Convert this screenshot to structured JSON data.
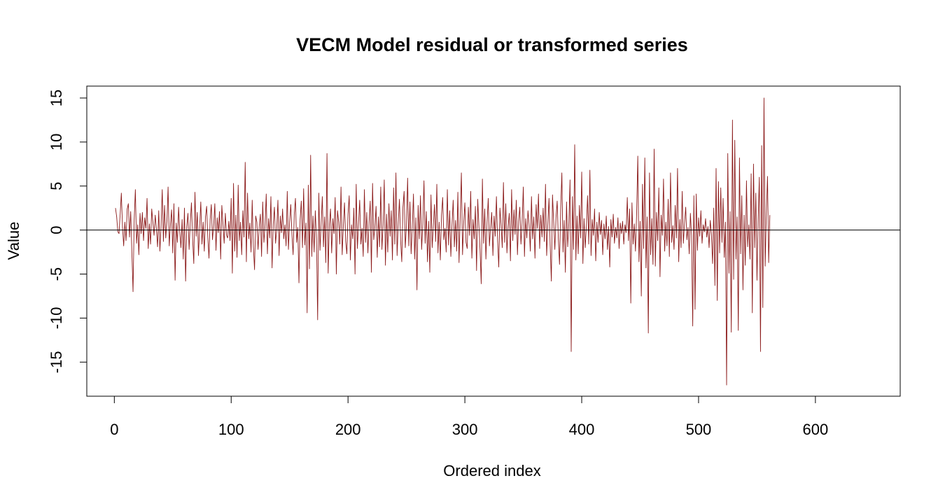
{
  "chart_data": {
    "type": "line",
    "title": "VECM Model residual or transformed series",
    "xlabel": "Ordered index",
    "ylabel": "Value",
    "xlim": [
      1,
      648
    ],
    "ylim": [
      -17.6,
      15.0
    ],
    "x_ticks": [
      0,
      100,
      200,
      300,
      400,
      500,
      600
    ],
    "y_ticks": [
      -15,
      -10,
      -5,
      0,
      5,
      10,
      15
    ],
    "x_tick_labels": [
      "0",
      "100",
      "200",
      "300",
      "400",
      "500",
      "600"
    ],
    "y_tick_labels": [
      "-15",
      "-10",
      "-5",
      "0",
      "5",
      "10",
      "15"
    ],
    "reference_line_y": 0,
    "grid": false,
    "line_color": "#8b1a1a",
    "series": [
      {
        "x_start": 1,
        "x_step": 1,
        "values": [
          2.5,
          1.5,
          -0.2,
          -0.4,
          1.8,
          4.2,
          0.3,
          -1.8,
          0.9,
          -1.2,
          2.4,
          3.0,
          -0.8,
          2.1,
          -2.5,
          -7.0,
          1.2,
          4.6,
          -1.5,
          0.6,
          -2.8,
          1.9,
          -0.4,
          2.0,
          -1.2,
          1.4,
          0.2,
          3.6,
          -2.1,
          0.7,
          -1.6,
          2.4,
          0.9,
          -0.6,
          1.7,
          0.1,
          -1.9,
          2.2,
          -2.4,
          0.5,
          4.6,
          -1.3,
          2.8,
          -0.9,
          1.0,
          4.9,
          -1.8,
          0.6,
          2.3,
          -2.6,
          3.0,
          -5.7,
          0.8,
          -1.4,
          2.6,
          -0.2,
          -2.0,
          1.2,
          -3.3,
          2.5,
          -5.8,
          0.4,
          1.9,
          -2.2,
          0.8,
          3.1,
          -1.0,
          -3.8,
          4.3,
          -0.7,
          2.0,
          -2.9,
          0.3,
          3.2,
          -1.6,
          0.9,
          -2.4,
          1.5,
          2.7,
          -0.8,
          -3.2,
          1.2,
          2.9,
          -1.1,
          0.5,
          3.0,
          -2.3,
          1.4,
          -0.3,
          2.1,
          -3.3,
          2.8,
          0.7,
          -1.5,
          1.9,
          -0.6,
          -0.9,
          1.0,
          -1.2,
          3.6,
          -4.9,
          5.3,
          -2.4,
          1.7,
          -3.1,
          5.1,
          -1.2,
          0.9,
          -2.8,
          2.2,
          -0.8,
          7.7,
          -3.6,
          4.2,
          -1.0,
          0.8,
          -2.5,
          3.4,
          -1.9,
          -4.5,
          1.6,
          0.9,
          -2.2,
          0.4,
          1.8,
          -3.0,
          3.2,
          -1.4,
          0.5,
          4.1,
          -2.7,
          1.3,
          -0.9,
          3.8,
          -4.3,
          0.7,
          2.6,
          -1.5,
          0.2,
          3.4,
          -2.9,
          1.6,
          -0.3,
          2.4,
          -1.0,
          0.6,
          -1.8,
          4.4,
          -2.2,
          0.9,
          2.9,
          -0.5,
          -2.8,
          1.8,
          3.6,
          -1.4,
          0.3,
          -6.0,
          1.2,
          3.3,
          -2.0,
          4.7,
          -1.7,
          0.8,
          -9.4,
          5.1,
          -4.4,
          8.5,
          -3.0,
          1.6,
          -2.5,
          2.2,
          -1.0,
          -10.2,
          4.2,
          -2.3,
          0.7,
          3.8,
          -1.9,
          1.5,
          -3.7,
          8.7,
          -4.9,
          0.6,
          2.4,
          -2.6,
          1.3,
          -0.4,
          3.7,
          -5.0,
          2.2,
          0.9,
          -1.6,
          4.9,
          -2.8,
          0.5,
          3.1,
          -1.3,
          -2.7,
          1.8,
          3.9,
          -3.4,
          0.6,
          -1.0,
          2.5,
          -5.0,
          5.2,
          -2.1,
          0.8,
          3.4,
          -1.6,
          0.2,
          -3.0,
          4.6,
          -1.4,
          2.0,
          -2.6,
          0.9,
          3.3,
          -4.8,
          5.3,
          -1.1,
          0.4,
          2.7,
          -3.1,
          1.5,
          -1.9,
          4.9,
          -2.2,
          0.6,
          5.7,
          -4.0,
          1.8,
          -2.5,
          3.0,
          -0.7,
          2.2,
          -3.4,
          4.8,
          -1.6,
          6.5,
          -2.9,
          0.8,
          3.5,
          -1.2,
          -3.6,
          2.6,
          4.4,
          -2.0,
          0.5,
          5.9,
          -1.8,
          3.2,
          -2.7,
          0.3,
          4.1,
          -3.3,
          1.4,
          -6.8,
          2.8,
          -1.0,
          3.9,
          -2.2,
          0.7,
          5.6,
          -1.5,
          2.1,
          -3.6,
          1.0,
          -4.8,
          4.0,
          -2.0,
          0.4,
          2.9,
          -1.3,
          5.2,
          -2.6,
          0.9,
          -3.4,
          1.7,
          3.7,
          -1.1,
          0.2,
          -2.5,
          4.6,
          -1.7,
          2.2,
          -3.0,
          0.6,
          3.4,
          -1.9,
          1.1,
          -2.4,
          4.3,
          -3.7,
          1.5,
          6.5,
          -2.8,
          0.8,
          3.1,
          -1.4,
          -2.1,
          2.6,
          -0.6,
          4.4,
          -3.2,
          1.2,
          -1.0,
          2.7,
          -4.6,
          3.5,
          0.5,
          -2.3,
          -6.1,
          5.8,
          -1.5,
          2.4,
          -3.3,
          0.9,
          3.6,
          -1.8,
          0.3,
          2.0,
          -2.9,
          1.6,
          -0.7,
          3.8,
          -1.1,
          -4.2,
          2.5,
          0.6,
          -2.0,
          5.4,
          -1.4,
          3.0,
          -2.6,
          0.4,
          1.9,
          -3.5,
          4.6,
          -1.2,
          2.3,
          -0.5,
          3.4,
          -2.8,
          1.0,
          2.6,
          -1.6,
          0.8,
          4.9,
          -3.0,
          1.3,
          -0.9,
          2.2,
          0.6,
          -2.4,
          3.8,
          -1.0,
          1.5,
          -3.2,
          2.9,
          0.2,
          4.1,
          -2.1,
          1.7,
          -0.8,
          2.5,
          -1.3,
          5.2,
          -2.9,
          0.6,
          3.6,
          -1.7,
          -5.8,
          4.0,
          0.9,
          -2.2,
          1.4,
          3.3,
          -1.0,
          -3.9,
          2.4,
          6.5,
          -2.5,
          1.1,
          -4.8,
          3.2,
          -1.9,
          0.8,
          5.7,
          -13.8,
          3.8,
          -2.2,
          9.7,
          -3.4,
          1.6,
          -2.7,
          2.8,
          -0.9,
          6.6,
          -3.8,
          1.3,
          -2.0,
          0.5,
          3.9,
          -1.6,
          6.8,
          -2.9,
          1.2,
          -0.6,
          2.4,
          -3.5,
          0.9,
          -1.4,
          2.0,
          -0.5,
          1.1,
          -2.8,
          0.7,
          -1.0,
          1.6,
          -2.2,
          0.4,
          -4.2,
          1.2,
          -0.8,
          1.8,
          -1.5,
          0.3,
          -0.9,
          1.4,
          -2.1,
          0.8,
          -0.4,
          1.0,
          -1.6,
          0.6,
          -0.3,
          3.7,
          -1.2,
          2.4,
          -8.3,
          3.1,
          -1.6,
          0.7,
          -2.4,
          1.9,
          8.4,
          -3.6,
          1.0,
          -7.5,
          5.2,
          -2.1,
          8.2,
          -4.3,
          1.5,
          -11.7,
          6.5,
          -2.8,
          1.3,
          -3.9,
          9.2,
          -4.1,
          2.0,
          -1.2,
          4.8,
          -5.3,
          1.7,
          -0.6,
          5.8,
          -2.4,
          0.9,
          -1.8,
          3.5,
          -3.0,
          6.5,
          -1.4,
          0.5,
          -2.2,
          2.8,
          -0.9,
          7.0,
          -3.6,
          1.2,
          -2.0,
          4.4,
          -1.5,
          0.8,
          2.6,
          -1.1,
          0.3,
          -2.7,
          1.9,
          -0.6,
          -10.9,
          3.9,
          -9.0,
          4.1,
          -2.3,
          1.4,
          -0.7,
          2.2,
          -1.5,
          0.6,
          -0.2,
          1.3,
          -0.8,
          0.4,
          -2.0,
          1.1,
          -0.5,
          -3.8,
          2.5,
          -6.3,
          7.0,
          -8.0,
          5.5,
          -2.6,
          4.8,
          -1.4,
          3.6,
          -3.1,
          0.9,
          -17.6,
          8.7,
          -4.9,
          2.1,
          -11.6,
          12.5,
          -5.6,
          10.2,
          -3.3,
          1.5,
          -11.4,
          8.2,
          -2.7,
          3.9,
          -6.8,
          1.7,
          -4.0,
          5.6,
          -1.9,
          0.6,
          -3.3,
          6.4,
          -9.4,
          7.5,
          -2.0,
          4.2,
          -5.7,
          1.1,
          6.0,
          -13.8,
          9.6,
          -8.8,
          15.0,
          -4.1,
          1.9,
          6.1,
          -3.7,
          1.7
        ]
      }
    ]
  }
}
